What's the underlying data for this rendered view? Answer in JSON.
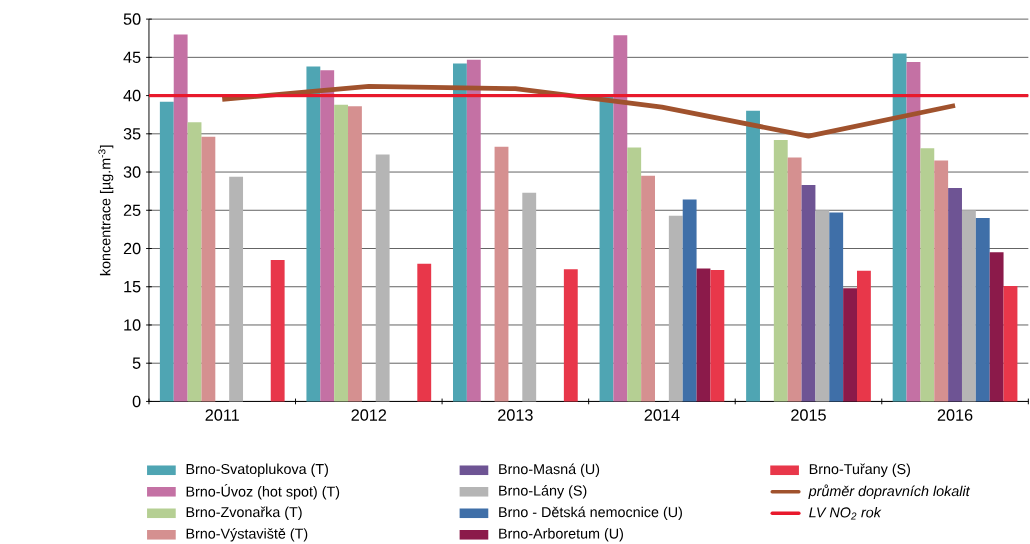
{
  "chart_data": {
    "type": "bar",
    "ylabel": "koncentrace [µg.m$^{-3}$]",
    "categories": [
      "2011",
      "2012",
      "2013",
      "2014",
      "2015",
      "2016"
    ],
    "ylim": [
      0,
      50
    ],
    "yticks": [
      0,
      5,
      10,
      15,
      20,
      25,
      30,
      35,
      40,
      45,
      50
    ],
    "grid": "y",
    "legend": "bottom",
    "series": [
      {
        "name": "Brno-Svatoplukova (T)",
        "color": "#4fa5b3",
        "values": [
          39.2,
          43.8,
          44.2,
          40.2,
          38.0,
          45.5
        ]
      },
      {
        "name": "Brno-Úvoz (hot spot) (T)",
        "color": "#c471a4",
        "values": [
          48.0,
          43.3,
          44.7,
          47.9,
          null,
          44.4
        ]
      },
      {
        "name": "Brno-Zvonařka (T)",
        "color": "#b5cf93",
        "values": [
          36.5,
          38.8,
          null,
          33.2,
          34.2,
          33.1
        ]
      },
      {
        "name": "Brno-Výstaviště (T)",
        "color": "#d59090",
        "values": [
          34.6,
          38.6,
          33.3,
          29.5,
          31.9,
          31.5
        ]
      },
      {
        "name": "Brno-Masná (U)",
        "color": "#6e5494",
        "values": [
          null,
          null,
          null,
          null,
          28.3,
          27.9
        ]
      },
      {
        "name": "Brno-Lány (S)",
        "color": "#b5b5b5",
        "values": [
          29.4,
          32.3,
          27.3,
          24.3,
          25.0,
          25.0
        ]
      },
      {
        "name": "Brno - Dětská nemocnice (U)",
        "color": "#3f6fa8",
        "values": [
          null,
          null,
          null,
          26.4,
          24.7,
          24.0
        ]
      },
      {
        "name": "Brno-Arboretum (U)",
        "color": "#8b1a4a",
        "values": [
          null,
          null,
          null,
          17.4,
          14.8,
          19.5
        ]
      },
      {
        "name": "Brno-Tuřany (S)",
        "color": "#e8374a",
        "values": [
          18.5,
          18.0,
          17.3,
          17.2,
          17.1,
          15.1
        ]
      },
      {
        "name": "průměr dopravních lokalit",
        "type": "line",
        "color": "#a0522d",
        "values": [
          39.5,
          41.2,
          40.9,
          38.5,
          34.7,
          38.7
        ]
      }
    ],
    "ref_lines": [
      {
        "axis": "y",
        "value": 40,
        "label": "LV NO$_{2}$ rok",
        "color": "#e8192c"
      }
    ]
  }
}
